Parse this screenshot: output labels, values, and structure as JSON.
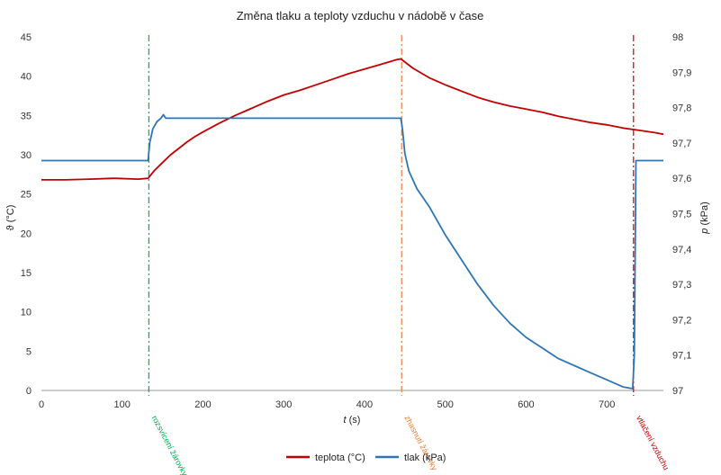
{
  "chart_data": {
    "type": "line",
    "title": "Změna tlaku a teploty vzduchu v nádobě v čase",
    "xlabel_var": "t",
    "xlabel_unit": " (s)",
    "ylabel_left": "ϑ (°C)",
    "ylabel_right_var": "p",
    "ylabel_right_unit": " (kPa)",
    "xlim": [
      0,
      770
    ],
    "ylim_left": [
      0,
      45
    ],
    "ylim_right": [
      97.0,
      98.0
    ],
    "x_ticks": [
      0,
      100,
      200,
      300,
      400,
      500,
      600,
      700
    ],
    "y_ticks_left": [
      0,
      5,
      10,
      15,
      20,
      25,
      30,
      35,
      40,
      45
    ],
    "y_ticks_right": [
      "97",
      "97,1",
      "97,2",
      "97,3",
      "97,4",
      "97,5",
      "97,6",
      "97,7",
      "97,8",
      "97,9",
      "98"
    ],
    "grid": false,
    "legend_position": "bottom",
    "series": [
      {
        "name": "teplota (°C)",
        "axis": "left",
        "color": "#c00000",
        "points": [
          [
            0,
            26.8
          ],
          [
            30,
            26.8
          ],
          [
            60,
            26.9
          ],
          [
            90,
            27.0
          ],
          [
            120,
            26.9
          ],
          [
            132,
            27.0
          ],
          [
            140,
            28.0
          ],
          [
            150,
            29.0
          ],
          [
            160,
            30.0
          ],
          [
            170,
            30.8
          ],
          [
            180,
            31.6
          ],
          [
            190,
            32.3
          ],
          [
            200,
            32.9
          ],
          [
            220,
            34.0
          ],
          [
            240,
            35.0
          ],
          [
            260,
            35.9
          ],
          [
            280,
            36.8
          ],
          [
            300,
            37.6
          ],
          [
            320,
            38.2
          ],
          [
            340,
            38.9
          ],
          [
            360,
            39.6
          ],
          [
            380,
            40.3
          ],
          [
            400,
            40.9
          ],
          [
            420,
            41.5
          ],
          [
            440,
            42.1
          ],
          [
            445,
            42.2
          ],
          [
            460,
            41.0
          ],
          [
            480,
            39.8
          ],
          [
            500,
            38.9
          ],
          [
            520,
            38.1
          ],
          [
            540,
            37.3
          ],
          [
            560,
            36.7
          ],
          [
            580,
            36.2
          ],
          [
            600,
            35.8
          ],
          [
            620,
            35.4
          ],
          [
            640,
            34.9
          ],
          [
            660,
            34.5
          ],
          [
            680,
            34.1
          ],
          [
            700,
            33.8
          ],
          [
            720,
            33.4
          ],
          [
            740,
            33.1
          ],
          [
            760,
            32.8
          ],
          [
            770,
            32.6
          ]
        ]
      },
      {
        "name": "tlak (kPa)",
        "axis": "right",
        "color": "#2e75b6",
        "points": [
          [
            0,
            97.65
          ],
          [
            60,
            97.65
          ],
          [
            120,
            97.65
          ],
          [
            132,
            97.65
          ],
          [
            134,
            97.7
          ],
          [
            138,
            97.74
          ],
          [
            143,
            97.76
          ],
          [
            148,
            97.77
          ],
          [
            151,
            97.78
          ],
          [
            154,
            97.77
          ],
          [
            160,
            97.77
          ],
          [
            250,
            97.77
          ],
          [
            350,
            97.77
          ],
          [
            440,
            97.77
          ],
          [
            445,
            97.77
          ],
          [
            447,
            97.74
          ],
          [
            450,
            97.67
          ],
          [
            455,
            97.62
          ],
          [
            465,
            97.57
          ],
          [
            480,
            97.52
          ],
          [
            500,
            97.44
          ],
          [
            520,
            97.37
          ],
          [
            540,
            97.3
          ],
          [
            560,
            97.24
          ],
          [
            580,
            97.19
          ],
          [
            600,
            97.15
          ],
          [
            620,
            97.12
          ],
          [
            640,
            97.09
          ],
          [
            660,
            97.07
          ],
          [
            680,
            97.05
          ],
          [
            700,
            97.03
          ],
          [
            720,
            97.01
          ],
          [
            732,
            97.005
          ],
          [
            734,
            97.1
          ],
          [
            736,
            97.65
          ],
          [
            760,
            97.65
          ],
          [
            770,
            97.65
          ]
        ]
      }
    ],
    "annotations": [
      {
        "x": 133,
        "text": "rozsvícení žárovky",
        "color": "#00b050",
        "style": "dashdot"
      },
      {
        "x": 446,
        "text": "zhasnutí žárovky",
        "color": "#ed7d31",
        "style": "dashdot"
      },
      {
        "x": 733,
        "text": "vtlačení vzduchu",
        "color": "#c00000",
        "style": "dashdot"
      }
    ]
  }
}
